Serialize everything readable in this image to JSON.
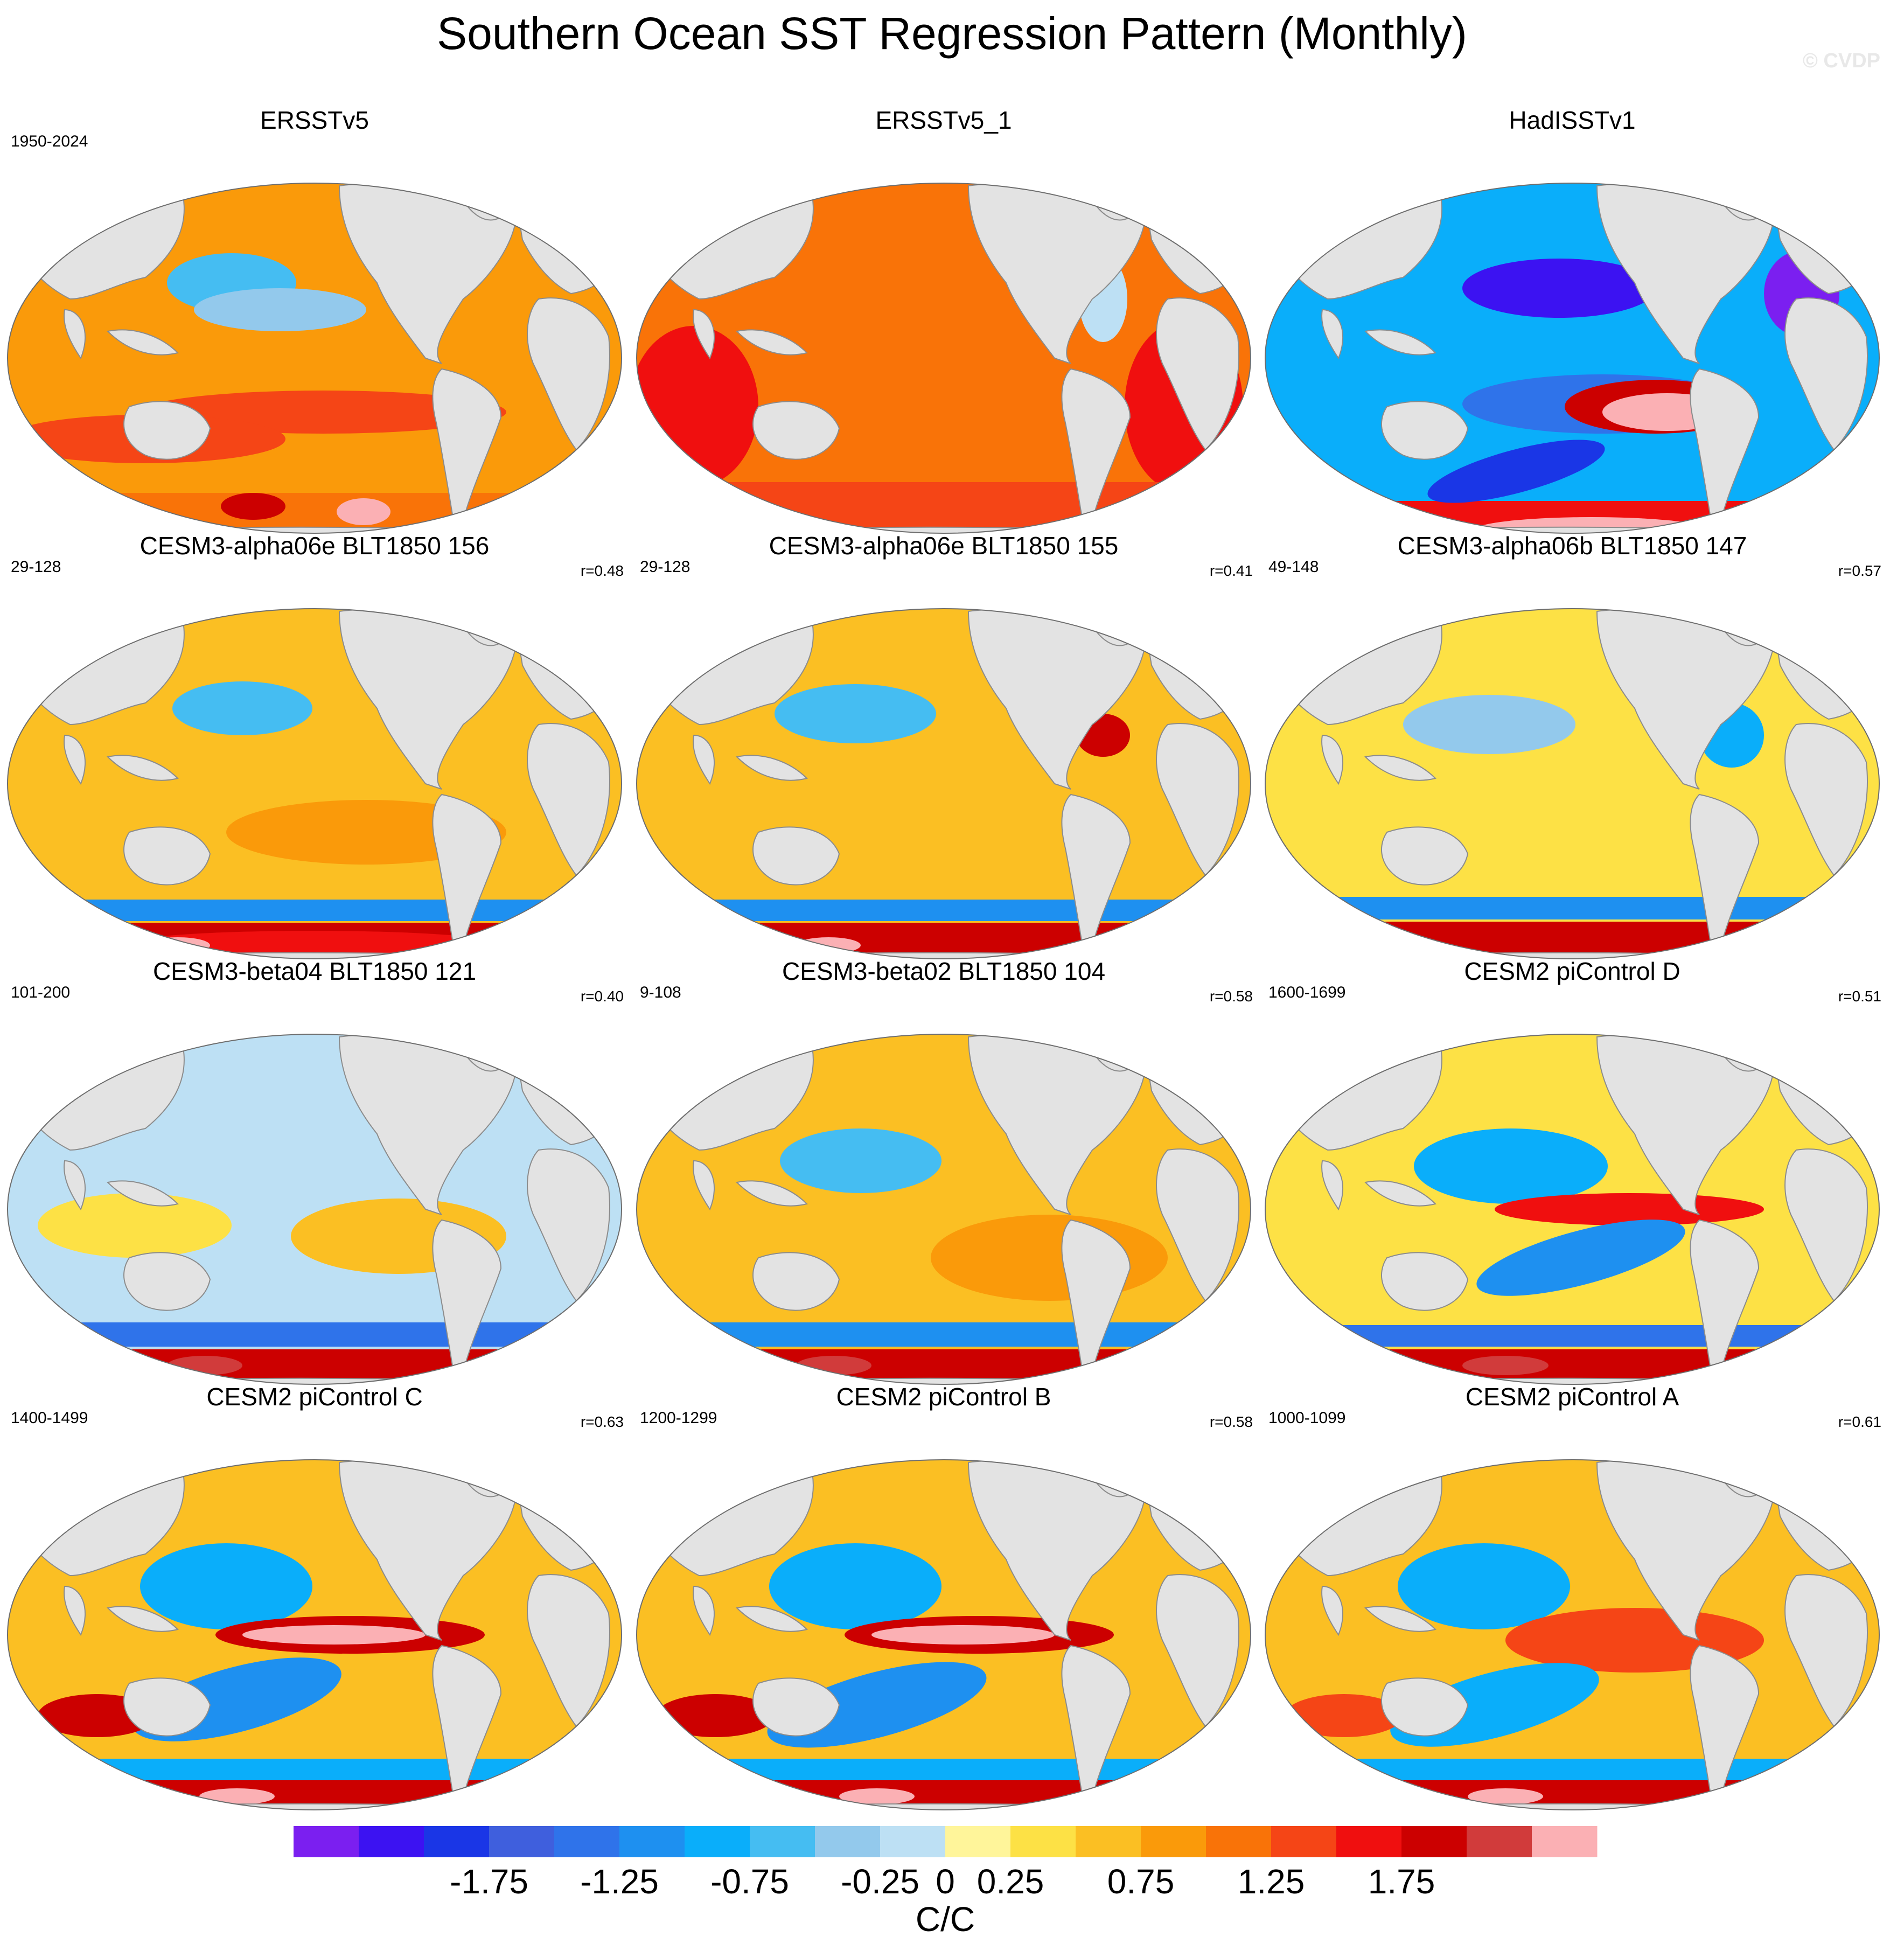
{
  "title": "Southern Ocean SST Regression Pattern (Monthly)",
  "watermark": "© CVDP",
  "colors": {
    "land": "#e3e3e3",
    "coast": "#8c8c8c",
    "levels": [
      "#7b1ff0",
      "#3c12f2",
      "#1a36e6",
      "#3f5fdd",
      "#2f73ea",
      "#1e90f0",
      "#0aaefa",
      "#45bdf2",
      "#93c9ec",
      "#bde0f4",
      "#fff59a",
      "#fde145",
      "#fbbf23",
      "#fa9a0a",
      "#f97308",
      "#f54516",
      "#f00f0f",
      "#cc0000",
      "#d13b3b",
      "#fbb0b4"
    ]
  },
  "panels": [
    {
      "title": "ERSSTv5",
      "years": "1950-2024",
      "r": ""
    },
    {
      "title": "ERSSTv5_1",
      "years": "",
      "r": ""
    },
    {
      "title": "HadISSTv1",
      "years": "",
      "r": ""
    },
    {
      "title": "CESM3-alpha06e BLT1850 156",
      "years": "29-128",
      "r": "r=0.48"
    },
    {
      "title": "CESM3-alpha06e BLT1850 155",
      "years": "29-128",
      "r": "r=0.41"
    },
    {
      "title": "CESM3-alpha06b BLT1850 147",
      "years": "49-148",
      "r": "r=0.57"
    },
    {
      "title": "CESM3-beta04 BLT1850 121",
      "years": "101-200",
      "r": "r=0.40"
    },
    {
      "title": "CESM3-beta02 BLT1850 104",
      "years": "9-108",
      "r": "r=0.58"
    },
    {
      "title": "CESM2 piControl D",
      "years": "1600-1699",
      "r": "r=0.51"
    },
    {
      "title": "CESM2 piControl C",
      "years": "1400-1499",
      "r": "r=0.63"
    },
    {
      "title": "CESM2 piControl B",
      "years": "1200-1299",
      "r": "r=0.58"
    },
    {
      "title": "CESM2 piControl A",
      "years": "1000-1099",
      "r": "r=0.61"
    }
  ],
  "chart_data": {
    "type": "heatmap",
    "projection": "Robinson (global, Pacific-centered)",
    "grid": "3 columns x 4 rows of maps",
    "colorbar": {
      "orientation": "horizontal",
      "label": "C/C",
      "levels": [
        -2.25,
        -2.0,
        -1.75,
        -1.5,
        -1.25,
        -1.0,
        -0.75,
        -0.5,
        -0.25,
        0,
        0.25,
        0.5,
        0.75,
        1.0,
        1.25,
        1.5,
        1.75,
        2.0,
        2.25
      ],
      "tick_labels": [
        "-1.75",
        "-1.25",
        "-0.75",
        "-0.25",
        "0",
        "0.25",
        "0.75",
        "1.25",
        "1.75"
      ],
      "tick_values": [
        -1.75,
        -1.25,
        -0.75,
        -0.25,
        0,
        0.25,
        0.75,
        1.25,
        1.75
      ]
    },
    "maps": [
      {
        "name": "ERSSTv5",
        "pattern": "warm almost everywhere (+0.5 to +1.25), peaks ~+2 in Southern Ocean; weak negatives central N Pacific"
      },
      {
        "name": "ERSSTv5_1",
        "pattern": "uniformly warm (+0.75 to +1.5) over global ocean, stronger in Indian and S Atlantic sectors"
      },
      {
        "name": "HadISSTv1",
        "pattern": "strong negatives (-1 to -2) over most oceans; positive ~+2 tongue in eastern tropical Pacific and along Southern Ocean"
      },
      {
        "name": "CESM3-alpha06e BLT1850 156",
        "pattern": "warm Pacific (+0.5), cool band ~45S (-0.75), strong warm band ~60S (+1.75 to +2.25)"
      },
      {
        "name": "CESM3-alpha06e BLT1850 155",
        "pattern": "warm Pacific (+0.5), cool band ~45S, strong warm band ~60S"
      },
      {
        "name": "CESM3-alpha06b BLT1850 147",
        "pattern": "weak warm Pacific (+0.25 to +0.5), cool band ~45S, warm band ~60S (+1.5)"
      },
      {
        "name": "CESM3-beta04 BLT1850 121",
        "pattern": "weak mixed tropics, cool band ~45S (-1), strong warm band ~60S (+2)"
      },
      {
        "name": "CESM3-beta02 BLT1850 104",
        "pattern": "warm eastern Pacific (+0.5), cool band ~45S, strong warm band ~60S (+2)"
      },
      {
        "name": "CESM2 piControl D",
        "pattern": "strong equatorial Pacific warm tongue (+1.5), cool mid-latitudes, warm band ~60S (+2)"
      },
      {
        "name": "CESM2 piControl C",
        "pattern": "very strong equatorial Pacific warm tongue (+2.25), cool subtropics (-1.25), warm band ~60S"
      },
      {
        "name": "CESM2 piControl B",
        "pattern": "very strong equatorial Pacific warm tongue (+2.25), cool subtropics, warm band ~60S"
      },
      {
        "name": "CESM2 piControl A",
        "pattern": "equatorial Pacific warm tongue (+1.5), cool subtropics, warm band ~60S (+2)"
      }
    ]
  }
}
